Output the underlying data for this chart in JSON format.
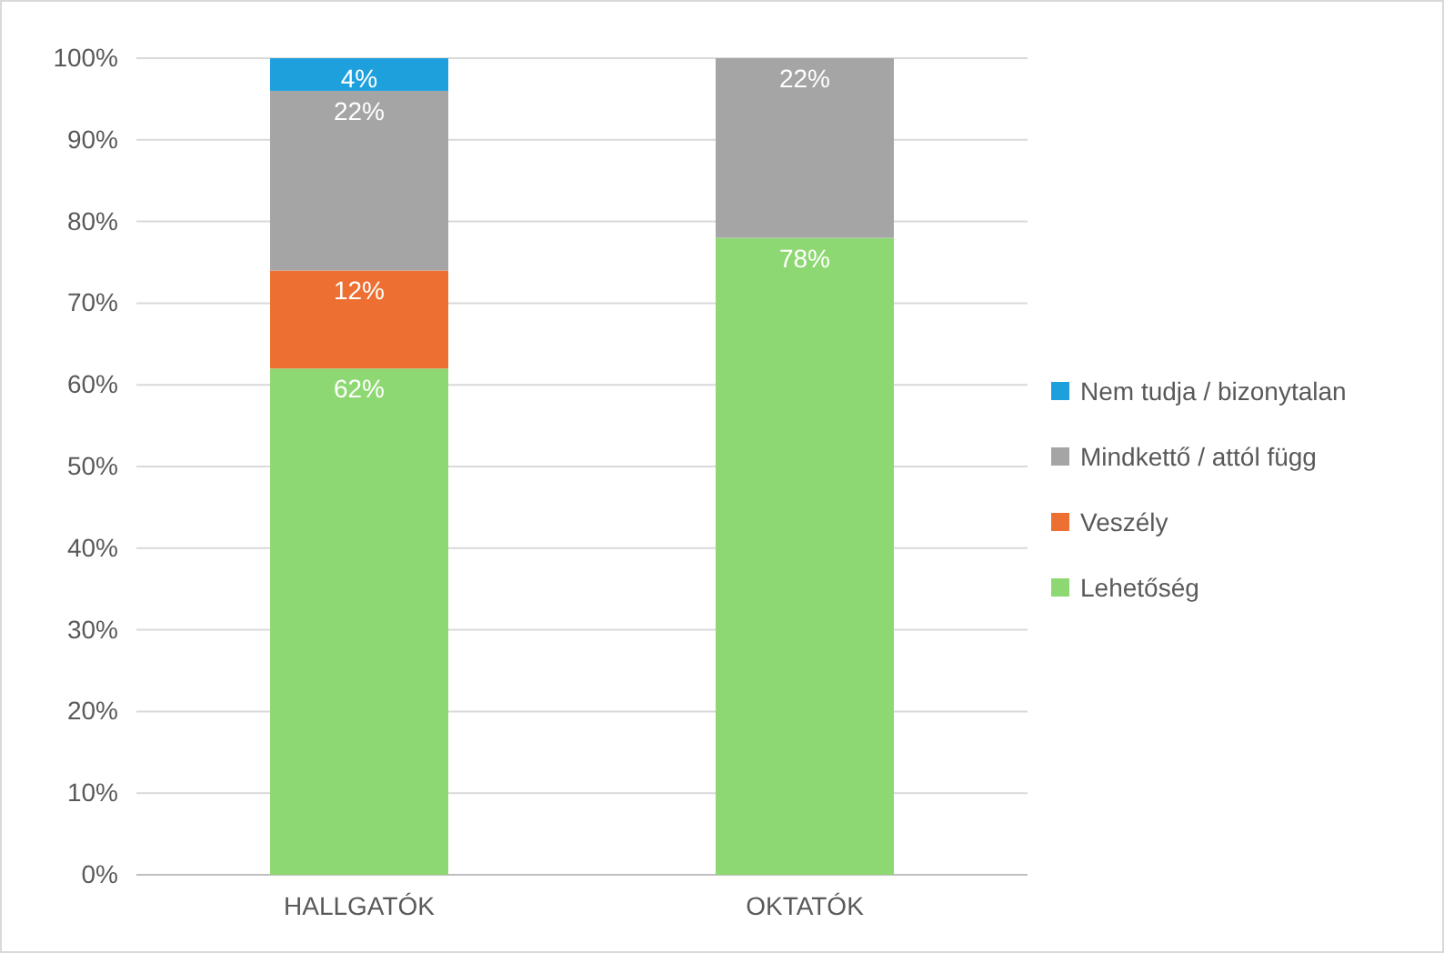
{
  "chart_data": {
    "type": "bar",
    "stacked": true,
    "categories": [
      "HALLGATÓK",
      "OKTATÓK"
    ],
    "series": [
      {
        "name": "Lehetőség",
        "color": "#8ed873",
        "values": [
          62,
          78
        ],
        "value_labels": [
          "62%",
          "78%"
        ]
      },
      {
        "name": "Veszély",
        "color": "#ed7032",
        "values": [
          12,
          0
        ],
        "value_labels": [
          "12%",
          null
        ]
      },
      {
        "name": "Mindkettő / attól függ",
        "color": "#a5a5a5",
        "values": [
          22,
          22
        ],
        "value_labels": [
          "22%",
          "22%"
        ]
      },
      {
        "name": "Nem tudja / bizonytalan",
        "color": "#1ea0dc",
        "values": [
          4,
          0
        ],
        "value_labels": [
          "4%",
          null
        ]
      }
    ],
    "ylim": [
      0,
      100
    ],
    "yticks": [
      {
        "value": 0,
        "label": "0%"
      },
      {
        "value": 10,
        "label": "10%"
      },
      {
        "value": 20,
        "label": "20%"
      },
      {
        "value": 30,
        "label": "30%"
      },
      {
        "value": 40,
        "label": "40%"
      },
      {
        "value": 50,
        "label": "50%"
      },
      {
        "value": 60,
        "label": "60%"
      },
      {
        "value": 70,
        "label": "70%"
      },
      {
        "value": 80,
        "label": "80%"
      },
      {
        "value": 90,
        "label": "90%"
      },
      {
        "value": 100,
        "label": "100%"
      }
    ],
    "grid": "y",
    "legend": "right"
  }
}
